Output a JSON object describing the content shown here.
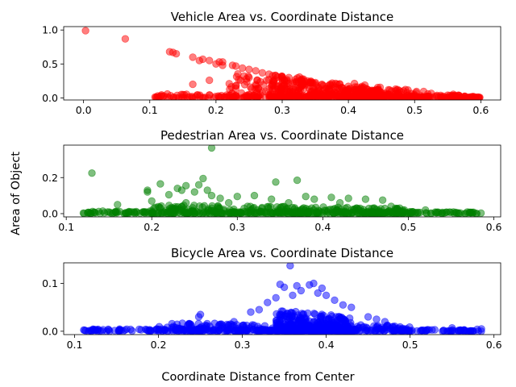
{
  "figure": {
    "ylabel": "Area of Object",
    "xlabel": "Coordinate Distance from Center"
  },
  "chart_data": [
    {
      "type": "scatter",
      "title": "Vehicle Area vs. Coordinate Distance",
      "color": "#ff0000",
      "xlim": [
        -0.03,
        0.63
      ],
      "ylim": [
        -0.03,
        1.05
      ],
      "xticks": [
        0.0,
        0.1,
        0.2,
        0.3,
        0.4,
        0.5,
        0.6
      ],
      "xtick_labels": [
        "0.0",
        "0.1",
        "0.2",
        "0.3",
        "0.4",
        "0.5",
        "0.6"
      ],
      "yticks": [
        0.0,
        0.5,
        1.0
      ],
      "ytick_labels": [
        "0.0",
        "0.5",
        "1.0"
      ],
      "points": [
        [
          0.003,
          0.99
        ],
        [
          0.063,
          0.87
        ],
        [
          0.13,
          0.68
        ],
        [
          0.135,
          0.67
        ],
        [
          0.14,
          0.65
        ],
        [
          0.165,
          0.6
        ],
        [
          0.175,
          0.55
        ],
        [
          0.18,
          0.57
        ],
        [
          0.19,
          0.55
        ],
        [
          0.2,
          0.5
        ],
        [
          0.205,
          0.53
        ],
        [
          0.21,
          0.53
        ],
        [
          0.21,
          0.48
        ],
        [
          0.225,
          0.48
        ],
        [
          0.23,
          0.47
        ],
        [
          0.24,
          0.44
        ],
        [
          0.25,
          0.42
        ],
        [
          0.26,
          0.4
        ],
        [
          0.27,
          0.37
        ],
        [
          0.28,
          0.35
        ],
        [
          0.29,
          0.33
        ],
        [
          0.3,
          0.31
        ],
        [
          0.31,
          0.3
        ],
        [
          0.32,
          0.27
        ],
        [
          0.33,
          0.25
        ],
        [
          0.34,
          0.23
        ],
        [
          0.35,
          0.21
        ],
        [
          0.36,
          0.2
        ],
        [
          0.37,
          0.18
        ],
        [
          0.38,
          0.16
        ],
        [
          0.39,
          0.15
        ],
        [
          0.4,
          0.13
        ],
        [
          0.41,
          0.12
        ],
        [
          0.42,
          0.1
        ],
        [
          0.43,
          0.09
        ],
        [
          0.44,
          0.08
        ],
        [
          0.45,
          0.07
        ],
        [
          0.46,
          0.06
        ],
        [
          0.47,
          0.05
        ],
        [
          0.48,
          0.045
        ],
        [
          0.49,
          0.04
        ],
        [
          0.5,
          0.035
        ],
        [
          0.51,
          0.03
        ],
        [
          0.52,
          0.025
        ],
        [
          0.53,
          0.02
        ],
        [
          0.54,
          0.018
        ],
        [
          0.55,
          0.015
        ],
        [
          0.56,
          0.012
        ],
        [
          0.57,
          0.01
        ],
        [
          0.58,
          0.008
        ],
        [
          0.59,
          0.005
        ],
        [
          0.597,
          0.003
        ],
        [
          0.165,
          0.2
        ],
        [
          0.19,
          0.26
        ],
        [
          0.22,
          0.21
        ],
        [
          0.25,
          0.3
        ],
        [
          0.28,
          0.27
        ],
        [
          0.3,
          0.22
        ],
        [
          0.33,
          0.28
        ],
        [
          0.36,
          0.19
        ],
        [
          0.4,
          0.17
        ],
        [
          0.43,
          0.12
        ],
        [
          0.27,
          0.09
        ],
        [
          0.23,
          0.14
        ],
        [
          0.15,
          0.05
        ],
        [
          0.12,
          0.02
        ],
        [
          0.11,
          0.01
        ],
        [
          0.38,
          0.08
        ],
        [
          0.45,
          0.05
        ],
        [
          0.52,
          0.06
        ],
        [
          0.55,
          0.04
        ],
        [
          0.32,
          0.12
        ]
      ],
      "bands": [
        {
          "x0": 0.105,
          "x1": 0.6,
          "ymax_start": 0.06,
          "ymax_end": 0.015
        },
        {
          "x0": 0.22,
          "x1": 0.6,
          "ymax_start": 0.42,
          "ymax_end": 0.01
        },
        {
          "x0": 0.28,
          "x1": 0.45,
          "ymax_start": 0.38,
          "ymax_end": 0.12
        }
      ]
    },
    {
      "type": "scatter",
      "title": "Pedestrian Area vs. Coordinate Distance",
      "color": "#008000",
      "xlim": [
        0.097,
        0.608
      ],
      "ylim": [
        -0.018,
        0.38
      ],
      "xticks": [
        0.1,
        0.2,
        0.3,
        0.4,
        0.5,
        0.6
      ],
      "xtick_labels": [
        "0.1",
        "0.2",
        "0.3",
        "0.4",
        "0.5",
        "0.6"
      ],
      "yticks": [
        0.0,
        0.2
      ],
      "ytick_labels": [
        "0.0",
        "0.2"
      ],
      "points": [
        [
          0.27,
          0.365
        ],
        [
          0.13,
          0.225
        ],
        [
          0.21,
          0.165
        ],
        [
          0.26,
          0.195
        ],
        [
          0.255,
          0.16
        ],
        [
          0.23,
          0.14
        ],
        [
          0.24,
          0.155
        ],
        [
          0.345,
          0.175
        ],
        [
          0.37,
          0.185
        ],
        [
          0.195,
          0.13
        ],
        [
          0.195,
          0.12
        ],
        [
          0.22,
          0.105
        ],
        [
          0.235,
          0.13
        ],
        [
          0.25,
          0.12
        ],
        [
          0.265,
          0.13
        ],
        [
          0.27,
          0.1
        ],
        [
          0.28,
          0.085
        ],
        [
          0.3,
          0.095
        ],
        [
          0.32,
          0.1
        ],
        [
          0.34,
          0.08
        ],
        [
          0.38,
          0.095
        ],
        [
          0.39,
          0.08
        ],
        [
          0.41,
          0.09
        ],
        [
          0.43,
          0.085
        ],
        [
          0.45,
          0.08
        ],
        [
          0.47,
          0.075
        ],
        [
          0.16,
          0.05
        ],
        [
          0.2,
          0.07
        ],
        [
          0.24,
          0.06
        ],
        [
          0.29,
          0.06
        ],
        [
          0.36,
          0.06
        ],
        [
          0.42,
          0.06
        ],
        [
          0.48,
          0.04
        ],
        [
          0.52,
          0.02
        ],
        [
          0.585,
          0.003
        ],
        [
          0.12,
          0.003
        ],
        [
          0.125,
          0.005
        ]
      ],
      "bands": [
        {
          "x0": 0.12,
          "x1": 0.585,
          "ymax_start": 0.015,
          "ymax_end": 0.01
        },
        {
          "x0": 0.2,
          "x1": 0.5,
          "ymax_start": 0.05,
          "ymax_end": 0.03
        }
      ]
    },
    {
      "type": "scatter",
      "title": "Bicycle Area vs. Coordinate Distance",
      "color": "#0000ff",
      "xlim": [
        0.087,
        0.608
      ],
      "ylim": [
        -0.007,
        0.143
      ],
      "xticks": [
        0.1,
        0.2,
        0.3,
        0.4,
        0.5,
        0.6
      ],
      "xtick_labels": [
        "0.1",
        "0.2",
        "0.3",
        "0.4",
        "0.5",
        "0.6"
      ],
      "yticks": [
        0.0,
        0.1
      ],
      "ytick_labels": [
        "0.0",
        "0.1"
      ],
      "points": [
        [
          0.357,
          0.137
        ],
        [
          0.345,
          0.098
        ],
        [
          0.35,
          0.092
        ],
        [
          0.365,
          0.095
        ],
        [
          0.38,
          0.097
        ],
        [
          0.385,
          0.1
        ],
        [
          0.37,
          0.085
        ],
        [
          0.39,
          0.08
        ],
        [
          0.395,
          0.09
        ],
        [
          0.4,
          0.075
        ],
        [
          0.34,
          0.07
        ],
        [
          0.33,
          0.06
        ],
        [
          0.36,
          0.075
        ],
        [
          0.41,
          0.065
        ],
        [
          0.42,
          0.055
        ],
        [
          0.43,
          0.05
        ],
        [
          0.31,
          0.04
        ],
        [
          0.32,
          0.045
        ],
        [
          0.25,
          0.035
        ],
        [
          0.248,
          0.03
        ],
        [
          0.29,
          0.02
        ],
        [
          0.45,
          0.03
        ],
        [
          0.46,
          0.025
        ],
        [
          0.47,
          0.02
        ],
        [
          0.55,
          0.007
        ],
        [
          0.58,
          0.004
        ],
        [
          0.585,
          0.005
        ],
        [
          0.112,
          0.002
        ],
        [
          0.125,
          0.003
        ],
        [
          0.14,
          0.004
        ]
      ],
      "bands": [
        {
          "x0": 0.11,
          "x1": 0.585,
          "ymax_start": 0.005,
          "ymax_end": 0.003
        },
        {
          "x0": 0.2,
          "x1": 0.5,
          "ymax_start": 0.018,
          "ymax_end": 0.012
        },
        {
          "x0": 0.34,
          "x1": 0.43,
          "ymax_start": 0.045,
          "ymax_end": 0.03
        }
      ]
    }
  ]
}
